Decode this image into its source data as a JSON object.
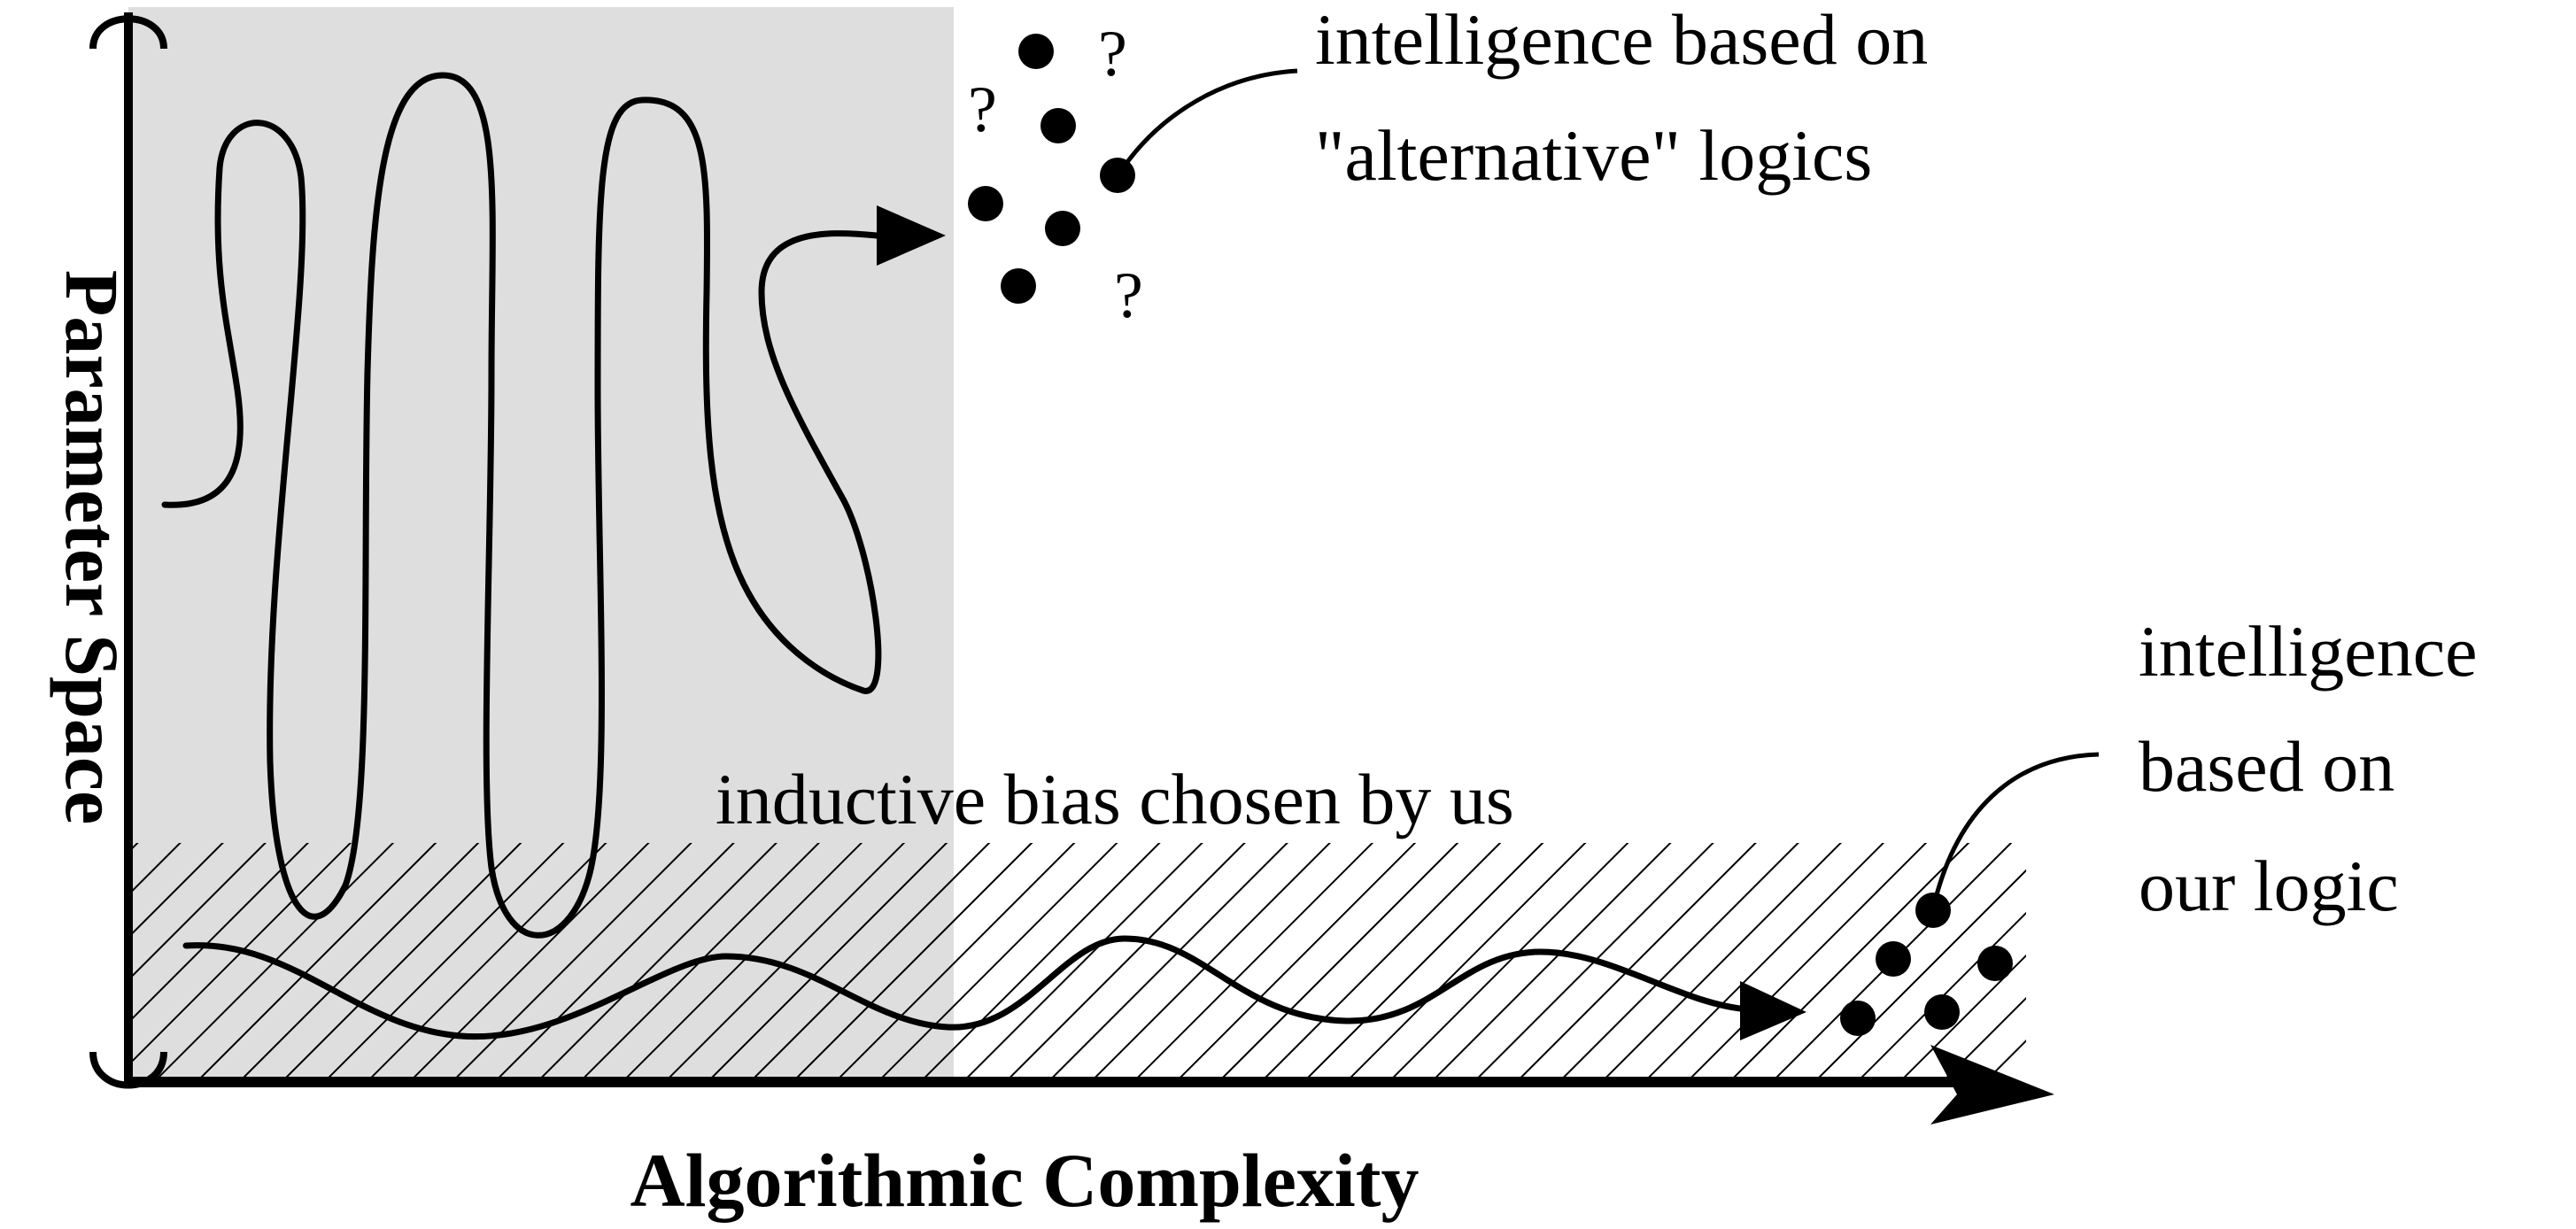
{
  "axes": {
    "x_label": "Algorithmic Complexity",
    "y_label": "Parameter Space"
  },
  "regions": {
    "hatched_label": "inductive bias chosen by us"
  },
  "annotations": {
    "alternative": {
      "line1": "intelligence based on",
      "line2": "\"alternative\" logics"
    },
    "ours": {
      "line1": "intelligence",
      "line2": "based on",
      "line3": "our logic"
    }
  },
  "question_marks": [
    "?",
    "?",
    "?"
  ],
  "colors": {
    "shaded_region": "#dedede",
    "ink": "#000000",
    "background": "#ffffff"
  }
}
